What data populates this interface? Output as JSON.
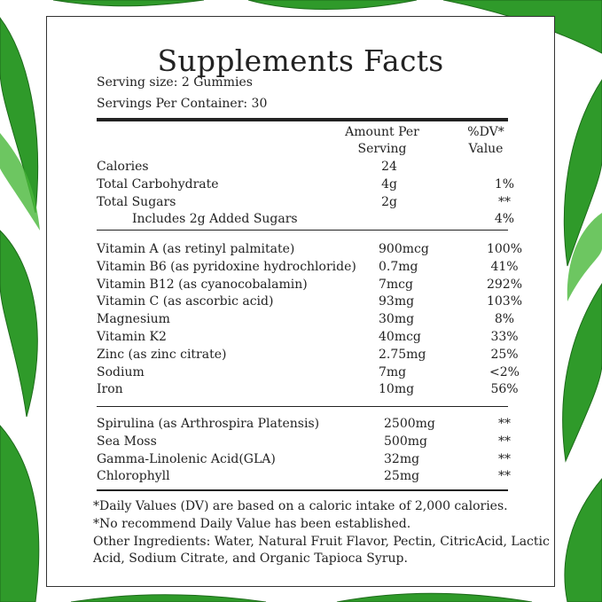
{
  "title": "Supplements Facts",
  "serving_size": "Serving size: 2 Gummies",
  "servings_per_container": "Servings Per Container: 30",
  "header": {
    "amount_line1": "Amount Per",
    "amount_line2": "Serving",
    "dv_line1": "%DV*",
    "dv_line2": "Value"
  },
  "section1": [
    {
      "name": "Calories",
      "amount": "24",
      "dv": ""
    },
    {
      "name": "Total Carbohydrate",
      "amount": "4g",
      "dv": "1%"
    },
    {
      "name": "Total Sugars",
      "amount": "2g",
      "dv": "**"
    },
    {
      "name": "Includes 2g Added Sugars",
      "amount": "",
      "dv": "4%"
    }
  ],
  "section2": [
    {
      "name": "Vitamin A (as retinyl palmitate)",
      "amount": "900mcg",
      "dv": "100%"
    },
    {
      "name": "Vitamin B6 (as pyridoxine hydrochloride)",
      "amount": "0.7mg",
      "dv": "41%"
    },
    {
      "name": "Vitamin B12 (as cyanocobalamin)",
      "amount": "7mcg",
      "dv": "292%"
    },
    {
      "name": "Vitamin C (as ascorbic acid)",
      "amount": "93mg",
      "dv": "103%"
    },
    {
      "name": "Magnesium",
      "amount": "30mg",
      "dv": "8%"
    },
    {
      "name": "Vitamin K2",
      "amount": "40mcg",
      "dv": "33%"
    },
    {
      "name": "Zinc (as zinc citrate)",
      "amount": "2.75mg",
      "dv": "25%"
    },
    {
      "name": "Sodium",
      "amount": "7mg",
      "dv": "<2%"
    },
    {
      "name": "Iron",
      "amount": "10mg",
      "dv": "56%"
    }
  ],
  "section3": [
    {
      "name": "Spirulina (as Arthrospira Platensis)",
      "amount": "2500mg",
      "dv": "**"
    },
    {
      "name": "Sea Moss",
      "amount": "500mg",
      "dv": "**"
    },
    {
      "name": "Gamma-Linolenic Acid(GLA)",
      "amount": "32mg",
      "dv": "**"
    },
    {
      "name": "Chlorophyll",
      "amount": "25mg",
      "dv": "**"
    }
  ],
  "footnotes": [
    "*Daily Values (DV) are based on a caloric intake of 2,000 calories.",
    "*No recommend Daily Value has been established.",
    "Other Ingredients: Water, Natural Fruit Flavor, Pectin, CitricAcid, Lactic",
    "Acid, Sodium Citrate, and Organic Tapioca Syrup."
  ],
  "colors": {
    "leaf_dark": "#1f7a1f",
    "leaf_light": "#3cab2e",
    "text": "#222222"
  }
}
